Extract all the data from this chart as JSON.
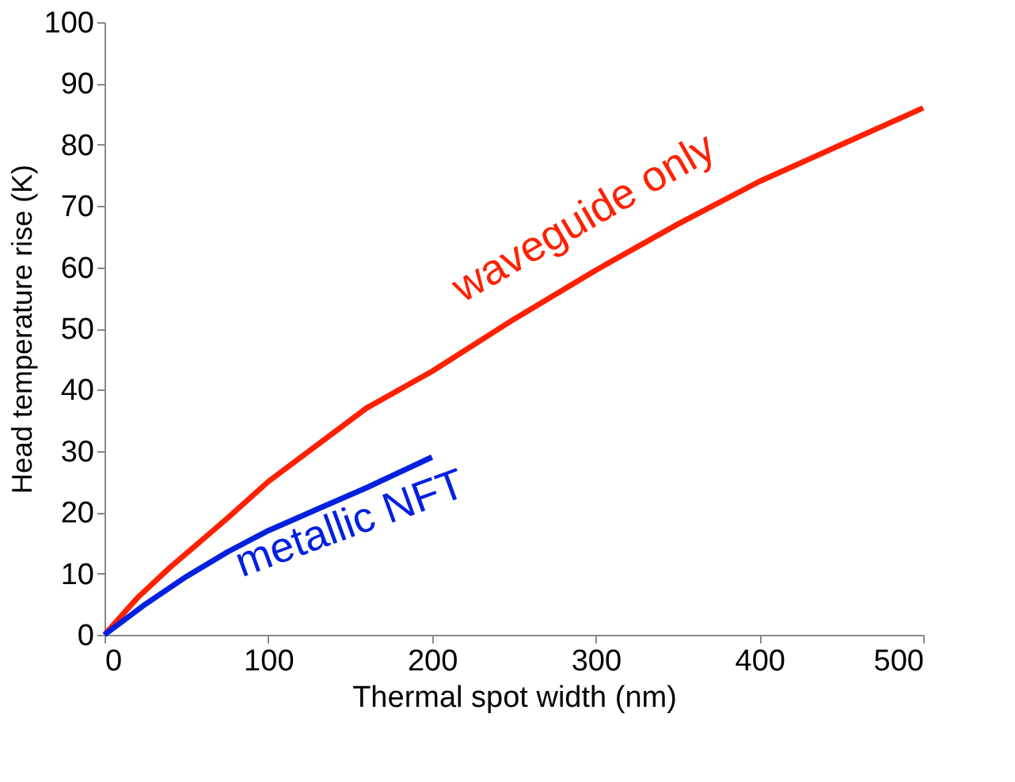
{
  "chart_data": {
    "type": "line",
    "xlabel": "Thermal spot width (nm)",
    "ylabel": "Head temperature rise (K)",
    "xlim": [
      0,
      500
    ],
    "xticks": [
      0,
      100,
      200,
      300,
      400,
      500
    ],
    "ylim": [
      0,
      100
    ],
    "yticks": [
      0,
      10,
      20,
      30,
      40,
      50,
      60,
      70,
      80,
      90,
      100
    ],
    "grid": false,
    "line_style": "solid",
    "marker": "none",
    "series": [
      {
        "name": "waveguide only",
        "color": "#ff2000",
        "x": [
          0,
          20,
          40,
          75,
          100,
          160,
          200,
          250,
          300,
          350,
          400,
          450,
          500
        ],
        "values": [
          0,
          6,
          11,
          19,
          25,
          37,
          43,
          51.5,
          59.5,
          67,
          74,
          80,
          86
        ]
      },
      {
        "name": "metallic NFT",
        "color": "#0020e0",
        "x": [
          0,
          25,
          50,
          75,
          100,
          130,
          160,
          200
        ],
        "values": [
          0,
          5,
          9.5,
          13.5,
          17,
          20.5,
          24,
          29
        ]
      }
    ]
  }
}
